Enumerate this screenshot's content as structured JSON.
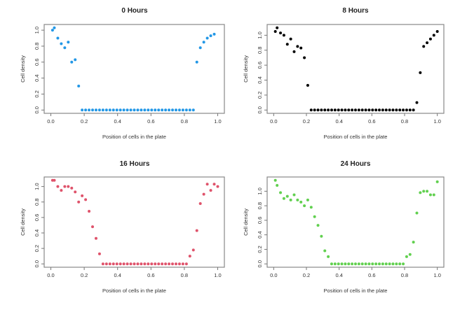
{
  "chart_data": [
    {
      "type": "scatter",
      "title": "0 Hours",
      "xlabel": "Position of cells in the plate",
      "ylabel": "Cell density",
      "color": "#2297E6",
      "xlim": [
        0,
        1
      ],
      "ylim": [
        0,
        1.03
      ],
      "xticks": [
        "0.0",
        "0.2",
        "0.4",
        "0.6",
        "0.8",
        "1.0"
      ],
      "yticks": [
        "0.0",
        "0.2",
        "0.4",
        "0.6",
        "0.8",
        "1.0"
      ],
      "y": [
        1.0,
        1.03,
        0.9,
        0.83,
        0.78,
        0.85,
        0.6,
        0.63,
        0.3,
        0,
        0,
        0,
        0,
        0,
        0,
        0,
        0,
        0,
        0,
        0,
        0,
        0,
        0,
        0,
        0,
        0,
        0,
        0,
        0,
        0,
        0,
        0,
        0,
        0,
        0,
        0,
        0,
        0,
        0,
        0,
        0,
        0,
        0.6,
        0.78,
        0.85,
        0.9,
        0.93,
        0.95
      ]
    },
    {
      "type": "scatter",
      "title": "8 Hours",
      "xlabel": "Position of cells in the plate",
      "ylabel": "Cell density",
      "color": "#000000",
      "xlim": [
        0,
        1
      ],
      "ylim": [
        0,
        1.1
      ],
      "xticks": [
        "0.0",
        "0.2",
        "0.4",
        "0.6",
        "0.8",
        "1.0"
      ],
      "yticks": [
        "0.0",
        "0.2",
        "0.4",
        "0.6",
        "0.8",
        "1.0"
      ],
      "y": [
        1.05,
        1.1,
        1.03,
        1.0,
        0.88,
        0.95,
        0.78,
        0.85,
        0.83,
        0.7,
        0.33,
        0,
        0,
        0,
        0,
        0,
        0,
        0,
        0,
        0,
        0,
        0,
        0,
        0,
        0,
        0,
        0,
        0,
        0,
        0,
        0,
        0,
        0,
        0,
        0,
        0,
        0,
        0,
        0,
        0,
        0,
        0,
        0.1,
        0.5,
        0.85,
        0.9,
        0.95,
        1.0,
        1.05
      ]
    },
    {
      "type": "scatter",
      "title": "16 Hours",
      "xlabel": "Position of cells in the plate",
      "ylabel": "Cell density",
      "color": "#DF536B",
      "xlim": [
        0,
        1
      ],
      "ylim": [
        0,
        1.08
      ],
      "xticks": [
        "0.0",
        "0.2",
        "0.4",
        "0.6",
        "0.8",
        "1.0"
      ],
      "yticks": [
        "0.0",
        "0.2",
        "0.4",
        "0.6",
        "0.8",
        "1.0"
      ],
      "y": [
        1.08,
        1.08,
        1.0,
        0.95,
        1.0,
        1.0,
        0.98,
        0.93,
        0.8,
        0.88,
        0.83,
        0.68,
        0.48,
        0.33,
        0.13,
        0,
        0,
        0,
        0,
        0,
        0,
        0,
        0,
        0,
        0,
        0,
        0,
        0,
        0,
        0,
        0,
        0,
        0,
        0,
        0,
        0,
        0,
        0,
        0,
        0,
        0.1,
        0.18,
        0.43,
        0.78,
        0.9,
        1.03,
        0.95,
        1.03,
        1.0
      ]
    },
    {
      "type": "scatter",
      "title": "24 Hours",
      "xlabel": "Position of cells in the plate",
      "ylabel": "Cell density",
      "color": "#61D04F",
      "xlim": [
        0,
        1
      ],
      "ylim": [
        0,
        1.15
      ],
      "xticks": [
        "0.0",
        "0.2",
        "0.4",
        "0.6",
        "0.8",
        "1.0"
      ],
      "yticks": [
        "0.0",
        "0.2",
        "0.4",
        "0.6",
        "0.8",
        "1.0"
      ],
      "y": [
        1.15,
        1.08,
        0.98,
        0.9,
        0.93,
        0.88,
        0.95,
        0.88,
        0.85,
        0.8,
        0.88,
        0.78,
        0.65,
        0.53,
        0.38,
        0.18,
        0.1,
        0,
        0,
        0,
        0,
        0,
        0,
        0,
        0,
        0,
        0,
        0,
        0,
        0,
        0,
        0,
        0,
        0,
        0,
        0,
        0,
        0,
        0,
        0.1,
        0.13,
        0.3,
        0.7,
        0.98,
        1.0,
        1.0,
        0.95,
        0.95,
        1.13
      ]
    }
  ]
}
